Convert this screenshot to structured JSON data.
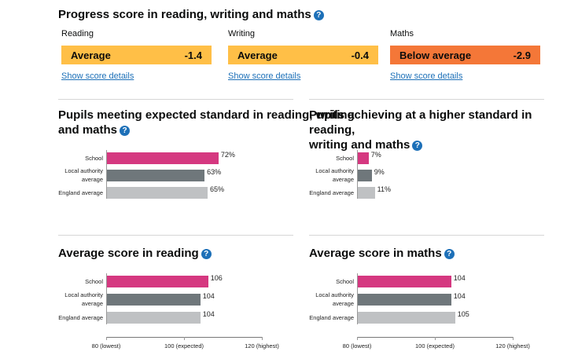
{
  "progress": {
    "title": "Progress score in reading, writing and maths",
    "help_icon": "question-icon",
    "subjects": [
      {
        "name": "Reading",
        "band": "Average",
        "score": "-1.4",
        "color": "#ffbf47",
        "link": "Show score details"
      },
      {
        "name": "Writing",
        "band": "Average",
        "score": "-0.4",
        "color": "#ffbf47",
        "link": "Show score details"
      },
      {
        "name": "Maths",
        "band": "Below average",
        "score": "-2.9",
        "color": "#f47738",
        "link": "Show score details"
      }
    ]
  },
  "colors": {
    "school": "#d53880",
    "local_authority": "#6f777b",
    "england": "#bfc1c3"
  },
  "panels": {
    "expected": {
      "title_line1": "Pupils meeting expected standard in reading, writing",
      "title_line2": "and maths",
      "rows": [
        {
          "label1": "School",
          "label2": "",
          "value": 72,
          "text": "72%"
        },
        {
          "label1": "Local authority",
          "label2": "average",
          "value": 63,
          "text": "63%"
        },
        {
          "label1": "England average",
          "label2": "",
          "value": 65,
          "text": "65%"
        }
      ]
    },
    "higher": {
      "title_line1": "Pupils achieving at a higher standard in reading,",
      "title_line2": "writing and maths",
      "rows": [
        {
          "label1": "School",
          "label2": "",
          "value": 7,
          "text": "7%"
        },
        {
          "label1": "Local authority",
          "label2": "average",
          "value": 9,
          "text": "9%"
        },
        {
          "label1": "England average",
          "label2": "",
          "value": 11,
          "text": "11%"
        }
      ]
    },
    "reading": {
      "title": "Average score in reading",
      "rows": [
        {
          "label1": "School",
          "label2": "",
          "value": 106,
          "text": "106"
        },
        {
          "label1": "Local authority",
          "label2": "average",
          "value": 104,
          "text": "104"
        },
        {
          "label1": "England average",
          "label2": "",
          "value": 104,
          "text": "104"
        }
      ],
      "ticks": [
        "80 (lowest)",
        "100 (expected)",
        "120 (highest)"
      ]
    },
    "maths": {
      "title": "Average score in maths",
      "rows": [
        {
          "label1": "School",
          "label2": "",
          "value": 104,
          "text": "104"
        },
        {
          "label1": "Local authority",
          "label2": "average",
          "value": 104,
          "text": "104"
        },
        {
          "label1": "England average",
          "label2": "",
          "value": 105,
          "text": "105"
        }
      ],
      "ticks": [
        "80 (lowest)",
        "100 (expected)",
        "120 (highest)"
      ]
    }
  },
  "chart_data": [
    {
      "type": "bar",
      "title": "Pupils meeting expected standard in reading, writing and maths",
      "categories": [
        "School",
        "Local authority average",
        "England average"
      ],
      "values": [
        72,
        63,
        65
      ]
    },
    {
      "type": "bar",
      "title": "Pupils achieving at a higher standard in reading, writing and maths",
      "categories": [
        "School",
        "Local authority average",
        "England average"
      ],
      "values": [
        7,
        9,
        11
      ]
    },
    {
      "type": "bar",
      "title": "Average score in reading",
      "categories": [
        "School",
        "Local authority average",
        "England average"
      ],
      "values": [
        106,
        104,
        104
      ],
      "xlim": [
        80,
        120
      ]
    },
    {
      "type": "bar",
      "title": "Average score in maths",
      "categories": [
        "School",
        "Local authority average",
        "England average"
      ],
      "values": [
        104,
        104,
        105
      ],
      "xlim": [
        80,
        120
      ]
    }
  ]
}
